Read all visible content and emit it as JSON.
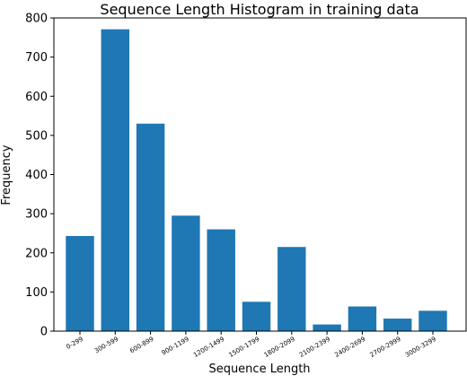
{
  "chart_data": {
    "type": "bar",
    "title": "Sequence Length Histogram in training data",
    "xlabel": "Sequence Length",
    "ylabel": "Frequency",
    "categories": [
      "0-299",
      "300-599",
      "600-899",
      "900-1199",
      "1200-1499",
      "1500-1799",
      "1800-2099",
      "2100-2399",
      "2400-2699",
      "2700-2999",
      "3000-3299"
    ],
    "values": [
      243,
      771,
      530,
      295,
      260,
      75,
      215,
      17,
      63,
      32,
      52
    ],
    "ylim": [
      0,
      800
    ],
    "yticks": [
      0,
      100,
      200,
      300,
      400,
      500,
      600,
      700,
      800
    ],
    "bar_color": "#1f77b4",
    "grid": false
  }
}
